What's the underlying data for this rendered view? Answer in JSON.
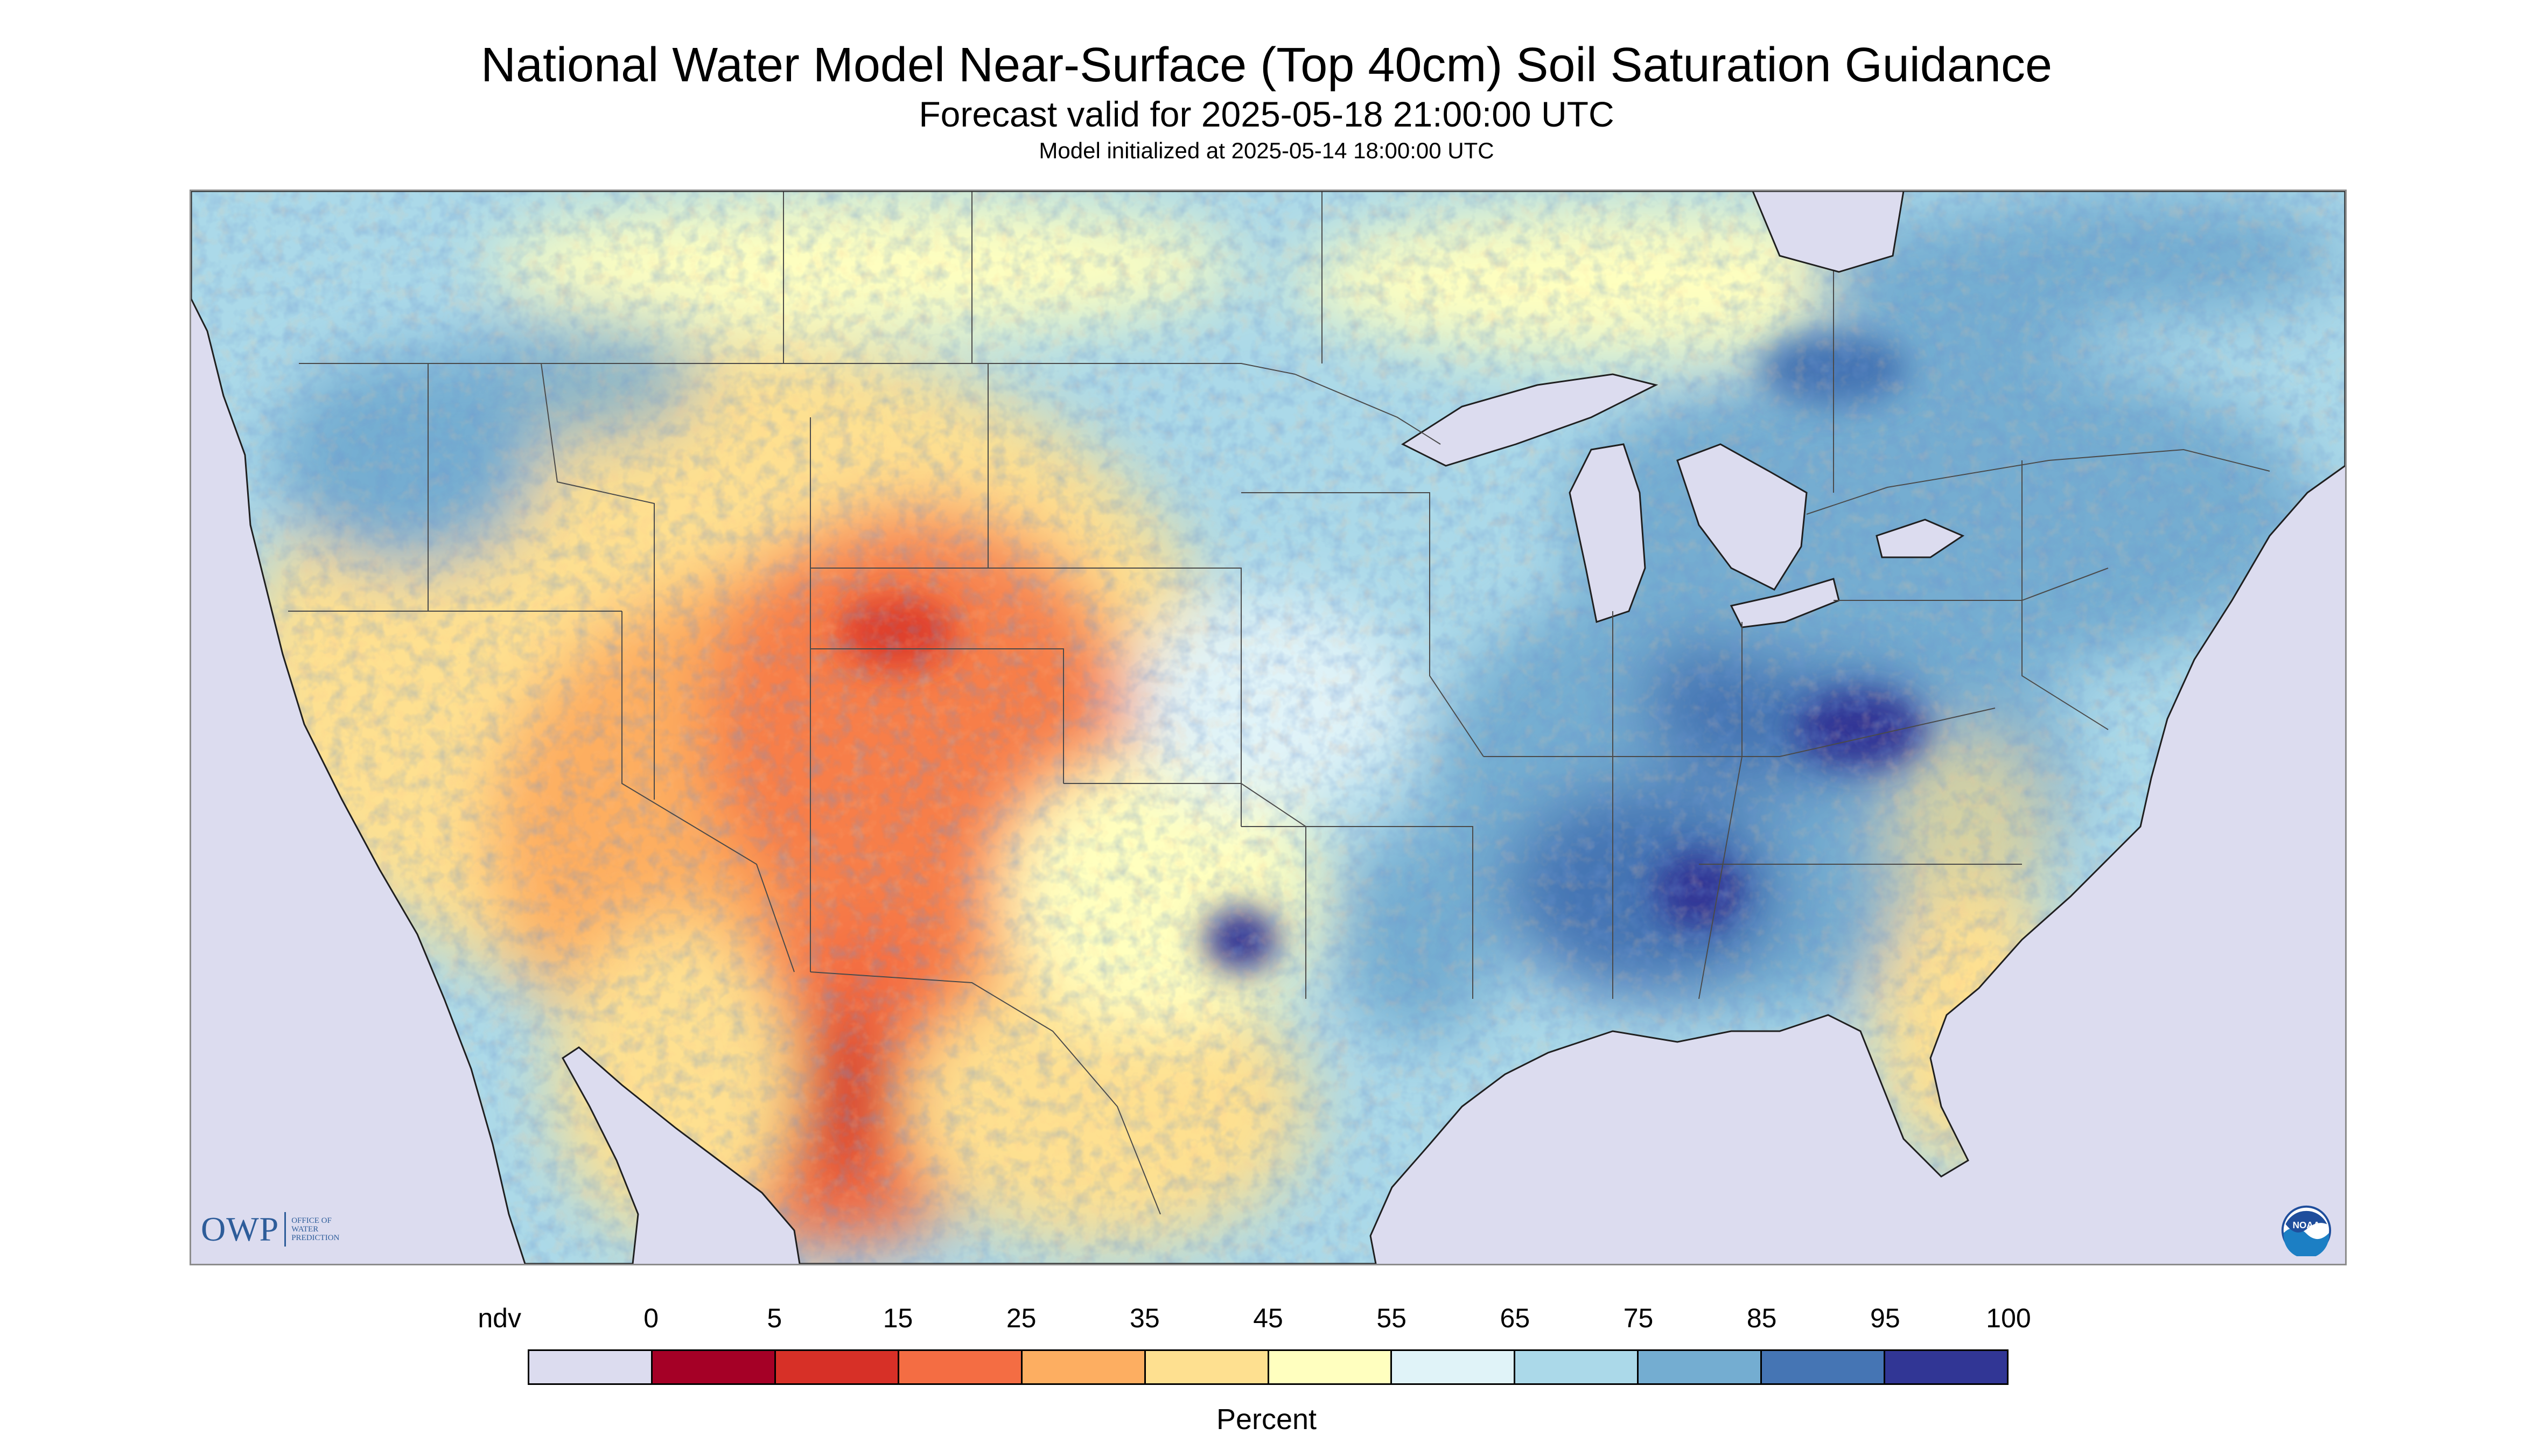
{
  "title": "National Water Model Near-Surface (Top 40cm) Soil Saturation Guidance",
  "subtitle": "Forecast valid for 2025-05-18 21:00:00 UTC",
  "init_line": "Model initialized at 2025-05-14 18:00:00 UTC",
  "logos": {
    "owp_letters": "OWP",
    "owp_lines": [
      "OFFICE OF",
      "WATER",
      "PREDICTION"
    ],
    "noaa_text": "NOAA"
  },
  "legend": {
    "title": "Percent",
    "labels": [
      "ndv",
      "0",
      "5",
      "15",
      "25",
      "35",
      "45",
      "55",
      "65",
      "75",
      "85",
      "95",
      "100"
    ],
    "bins": [
      {
        "label": "ndv",
        "color": "#dcdcef"
      },
      {
        "label": "0-5",
        "color": "#a50026"
      },
      {
        "label": "5-15",
        "color": "#d73027"
      },
      {
        "label": "15-25",
        "color": "#f46d43"
      },
      {
        "label": "25-35",
        "color": "#fdae61"
      },
      {
        "label": "35-45",
        "color": "#fee090"
      },
      {
        "label": "45-55",
        "color": "#ffffbf"
      },
      {
        "label": "55-65",
        "color": "#e0f3f8"
      },
      {
        "label": "65-75",
        "color": "#abd9e9"
      },
      {
        "label": "75-85",
        "color": "#74add1"
      },
      {
        "label": "85-95",
        "color": "#4575b4"
      },
      {
        "label": "95-100",
        "color": "#313695"
      }
    ]
  },
  "map": {
    "no_data_color": "#dcdcef",
    "water_color": "#dcdcef",
    "boundary_color": "#4a4a4a"
  }
}
